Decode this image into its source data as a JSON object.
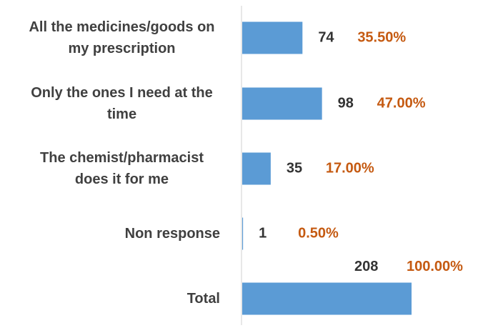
{
  "chart_data": {
    "type": "bar",
    "orientation": "horizontal",
    "categories": [
      "All the medicines/goods on my prescription",
      "Only the ones I need at the time",
      "The chemist/pharmacist does it for me",
      "Non response",
      "Total"
    ],
    "values": [
      74,
      98,
      35,
      1,
      208
    ],
    "percent_labels": [
      "35.50%",
      "47.00%",
      "17.00%",
      "0.50%",
      "100.00%"
    ],
    "color": "#5b9bd5",
    "count_color": "#333333",
    "percent_color": "#c55a11"
  }
}
